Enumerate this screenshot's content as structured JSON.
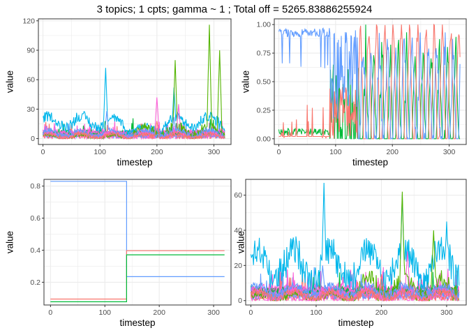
{
  "title": "3 topics; 1 cpts; gamma ~ 1 ; Total off =  5265.83886255924",
  "colors": {
    "red": "#F8766D",
    "green": "#00BA38",
    "olive_green": "#53B400",
    "blue": "#619CFF",
    "cyan": "#00B6EB",
    "magenta": "#FB61D7",
    "grid": "#EBEBEB",
    "frame": "#333333"
  },
  "chart_data": [
    {
      "type": "line",
      "panel": "top-left",
      "xlabel": "timestep",
      "ylabel": "value",
      "xlim": [
        -8,
        330
      ],
      "ylim": [
        -6,
        122
      ],
      "xticks": [
        0,
        100,
        200,
        300
      ],
      "yticks": [
        0,
        30,
        60,
        90,
        120
      ],
      "grid": true,
      "legend": "none",
      "note_on_series": "many noisy count series per topic; values estimated",
      "series_summary": [
        {
          "color": "cyan",
          "typical": [
            10,
            30
          ],
          "peaks": [
            [
              110,
              72
            ],
            [
              230,
              52
            ]
          ]
        },
        {
          "color": "olive_green",
          "typical": [
            0,
            20
          ],
          "peaks": [
            [
              232,
              80
            ],
            [
              292,
              116
            ],
            [
              310,
              90
            ]
          ]
        },
        {
          "color": "magenta",
          "typical": [
            0,
            10
          ],
          "peaks": [
            [
              200,
              42
            ],
            [
              238,
              35
            ]
          ]
        },
        {
          "color": "blue",
          "typical": [
            2,
            12
          ],
          "peaks": [
            [
              112,
              28
            ],
            [
              230,
              22
            ]
          ]
        },
        {
          "color": "red",
          "typical": [
            0,
            8
          ],
          "peaks": [
            [
              200,
              18
            ]
          ]
        }
      ]
    },
    {
      "type": "line",
      "panel": "top-right",
      "xlabel": "timestep",
      "ylabel": "value",
      "xlim": [
        -8,
        330
      ],
      "ylim": [
        -0.05,
        1.05
      ],
      "xticks": [
        0,
        100,
        200,
        300
      ],
      "yticks": [
        "0.00",
        "0.25",
        "0.50",
        "0.75",
        "1.00"
      ],
      "grid": true,
      "legend": "none",
      "series": [
        {
          "color": "blue",
          "segments": [
            [
              0,
              0.97
            ],
            [
              90,
              0.95
            ],
            [
              100,
              0.5
            ],
            [
              140,
              0.55
            ],
            [
              320,
              0.3
            ]
          ]
        },
        {
          "color": "red",
          "segments": [
            [
              0,
              0.0
            ],
            [
              100,
              0.35
            ],
            [
              200,
              0.6
            ],
            [
              280,
              0.98
            ],
            [
              320,
              0.05
            ]
          ]
        },
        {
          "color": "green",
          "segments": [
            [
              0,
              0.03
            ],
            [
              100,
              0.02
            ],
            [
              140,
              0.6
            ],
            [
              220,
              0.3
            ],
            [
              320,
              0.15
            ]
          ]
        }
      ]
    },
    {
      "type": "line",
      "panel": "bottom-left",
      "xlabel": "timestep",
      "ylabel": "value",
      "xlim": [
        -12,
        332
      ],
      "ylim": [
        0.058,
        0.842
      ],
      "xticks": [
        0,
        100,
        200,
        300
      ],
      "yticks": [
        "0.2",
        "0.4",
        "0.6",
        "0.8"
      ],
      "grid": true,
      "legend": "none",
      "changepoint": 140,
      "series": [
        {
          "color": "blue",
          "before": 0.83,
          "after": 0.235
        },
        {
          "color": "red",
          "before": 0.095,
          "after": 0.397
        },
        {
          "color": "green",
          "before": 0.078,
          "after": 0.371
        }
      ]
    },
    {
      "type": "line",
      "panel": "bottom-right",
      "xlabel": "timestep",
      "ylabel": "value",
      "xlim": [
        -8,
        330
      ],
      "ylim": [
        -2.5,
        69
      ],
      "xticks": [
        0,
        100,
        200,
        300
      ],
      "yticks": [
        0,
        20,
        40,
        60
      ],
      "grid": true,
      "legend": "none",
      "note_on_series": "many noisy count series per topic; values estimated",
      "series_summary": [
        {
          "color": "cyan",
          "typical": [
            10,
            40
          ],
          "peaks": [
            [
              112,
              67
            ],
            [
              232,
              60
            ],
            [
              300,
              45
            ]
          ]
        },
        {
          "color": "olive_green",
          "typical": [
            0,
            20
          ],
          "peaks": [
            [
              232,
              62
            ],
            [
              280,
              40
            ]
          ]
        },
        {
          "color": "magenta",
          "typical": [
            0,
            10
          ],
          "peaks": [
            [
              240,
              28
            ]
          ]
        },
        {
          "color": "blue",
          "typical": [
            2,
            12
          ],
          "peaks": [
            [
              110,
              20
            ]
          ]
        },
        {
          "color": "red",
          "typical": [
            0,
            8
          ],
          "peaks": [
            [
              200,
              15
            ]
          ]
        }
      ]
    }
  ]
}
